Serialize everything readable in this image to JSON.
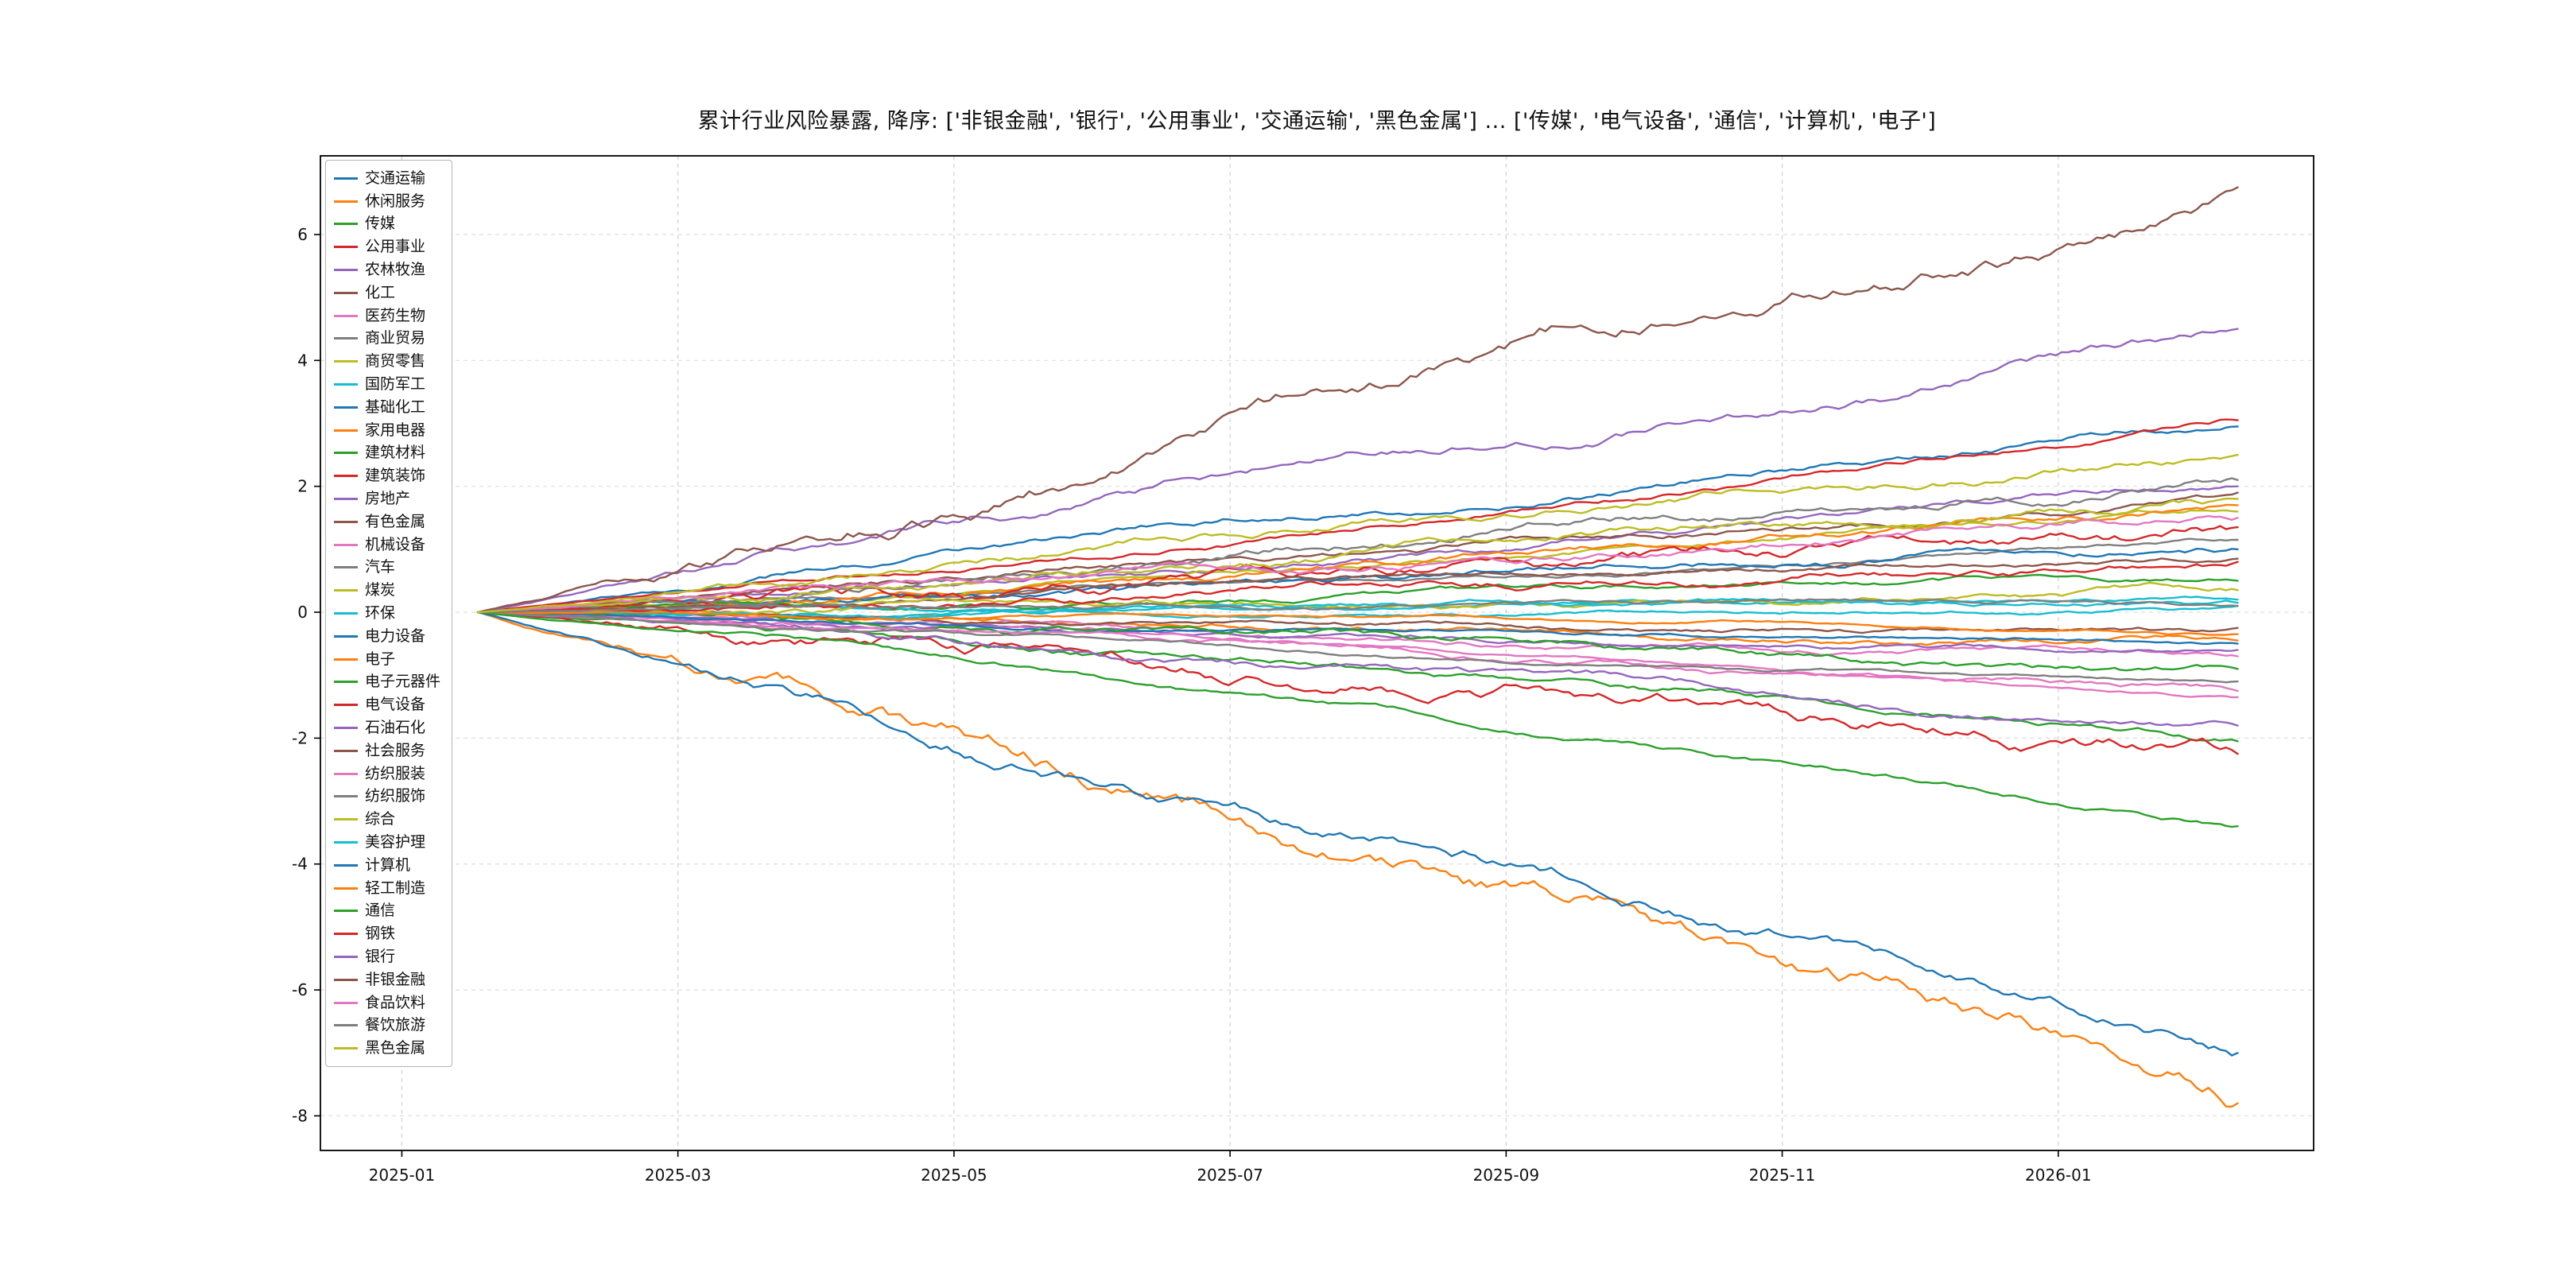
{
  "chart_data": {
    "type": "line",
    "title": "累计行业风险暴露, 降序: ['非银金融', '银行', '公用事业', '交通运输', '黑色金属'] ... ['传媒', '电气设备', '通信', '计算机', '电子']",
    "xlabel": "",
    "ylabel": "",
    "grid": true,
    "grid_style": "dashed",
    "grid_color": "#c7c7c7",
    "legend_position": "upper-left",
    "x_tick_labels": [
      "2025-01",
      "2025-03",
      "2025-05",
      "2025-07",
      "2025-09",
      "2025-11",
      "2026-01"
    ],
    "x_tick_months": [
      0,
      2,
      4,
      6,
      8,
      10,
      12
    ],
    "xlim_months": [
      -0.59,
      13.85
    ],
    "x_data_range_months": [
      0.55,
      13.3
    ],
    "y_ticks": [
      -8,
      -6,
      -4,
      -2,
      0,
      2,
      4,
      6
    ],
    "ylim": [
      -8.55,
      7.25
    ],
    "x_start_label": "2025-01",
    "x_end_label": "2026-02",
    "series_note": "cumulative exposure, all series start at 0 in early 2025-01; end_value is cumulative value at right edge (~2026-02)",
    "series": [
      {
        "name": "交通运输",
        "color": "#1f77b4",
        "end_value": 2.95
      },
      {
        "name": "休闲服务",
        "color": "#ff7f0e",
        "end_value": -0.45
      },
      {
        "name": "传媒",
        "color": "#2ca02c",
        "end_value": -2.05
      },
      {
        "name": "公用事业",
        "color": "#d62728",
        "end_value": 3.05
      },
      {
        "name": "农林牧渔",
        "color": "#9467bd",
        "end_value": 2.0
      },
      {
        "name": "化工",
        "color": "#8c564b",
        "end_value": 1.9
      },
      {
        "name": "医药生物",
        "color": "#e377c2",
        "end_value": -0.7
      },
      {
        "name": "商业贸易",
        "color": "#7f7f7f",
        "end_value": 1.15
      },
      {
        "name": "商贸零售",
        "color": "#bcbd22",
        "end_value": 1.6
      },
      {
        "name": "国防军工",
        "color": "#17becf",
        "end_value": 0.2
      },
      {
        "name": "基础化工",
        "color": "#1f77b4",
        "end_value": 1.0
      },
      {
        "name": "家用电器",
        "color": "#ff7f0e",
        "end_value": 1.7
      },
      {
        "name": "建筑材料",
        "color": "#2ca02c",
        "end_value": 0.5
      },
      {
        "name": "建筑装饰",
        "color": "#d62728",
        "end_value": 1.35
      },
      {
        "name": "房地产",
        "color": "#9467bd",
        "end_value": -0.6
      },
      {
        "name": "有色金属",
        "color": "#8c564b",
        "end_value": 0.85
      },
      {
        "name": "机械设备",
        "color": "#e377c2",
        "end_value": -1.25
      },
      {
        "name": "汽车",
        "color": "#7f7f7f",
        "end_value": 2.1
      },
      {
        "name": "煤炭",
        "color": "#bcbd22",
        "end_value": 1.8
      },
      {
        "name": "环保",
        "color": "#17becf",
        "end_value": 0.1
      },
      {
        "name": "电力设备",
        "color": "#1f77b4",
        "end_value": -0.5
      },
      {
        "name": "电子",
        "color": "#ff7f0e",
        "end_value": -7.8
      },
      {
        "name": "电子元器件",
        "color": "#2ca02c",
        "end_value": -0.9
      },
      {
        "name": "电气设备",
        "color": "#d62728",
        "end_value": -2.25
      },
      {
        "name": "石油石化",
        "color": "#9467bd",
        "end_value": -1.8
      },
      {
        "name": "社会服务",
        "color": "#8c564b",
        "end_value": -0.25
      },
      {
        "name": "纺织服装",
        "color": "#e377c2",
        "end_value": -1.35
      },
      {
        "name": "纺织服饰",
        "color": "#7f7f7f",
        "end_value": -1.1
      },
      {
        "name": "综合",
        "color": "#bcbd22",
        "end_value": 0.35
      },
      {
        "name": "美容护理",
        "color": "#17becf",
        "end_value": 0.15
      },
      {
        "name": "计算机",
        "color": "#1f77b4",
        "end_value": -7.0
      },
      {
        "name": "轻工制造",
        "color": "#ff7f0e",
        "end_value": -0.35
      },
      {
        "name": "通信",
        "color": "#2ca02c",
        "end_value": -3.4
      },
      {
        "name": "钢铁",
        "color": "#d62728",
        "end_value": 0.8
      },
      {
        "name": "银行",
        "color": "#9467bd",
        "end_value": 4.5
      },
      {
        "name": "非银金融",
        "color": "#8c564b",
        "end_value": 6.75
      },
      {
        "name": "食品饮料",
        "color": "#e377c2",
        "end_value": 1.5
      },
      {
        "name": "餐饮旅游",
        "color": "#7f7f7f",
        "end_value": 0.1
      },
      {
        "name": "黑色金属",
        "color": "#bcbd22",
        "end_value": 2.5
      }
    ]
  }
}
